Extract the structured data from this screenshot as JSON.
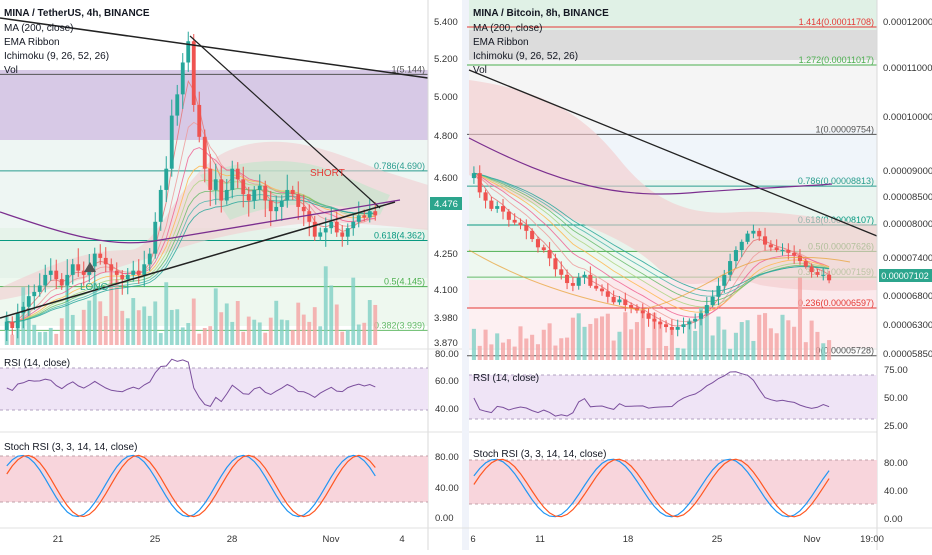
{
  "chart_data": [
    {
      "type": "candlestick",
      "panel": "left",
      "title": "MINA / TetherUS, 4h, BINANCE",
      "indicators": [
        "MA (200, close)",
        "EMA Ribbon",
        "Ichimoku (9, 26, 52, 26)",
        "Vol"
      ],
      "y_ticks": [
        "5.400",
        "5.200",
        "5.000",
        "4.800",
        "4.600",
        "4.476",
        "4.250",
        "4.100",
        "3.980",
        "3.870"
      ],
      "last_price": "4.476",
      "fib_levels": [
        {
          "label": "1(5.144)",
          "value": 5.144,
          "color": "#555555"
        },
        {
          "label": "0.786(4.690)",
          "value": 4.69,
          "color": "#2a9d8f"
        },
        {
          "label": "0.618(4.362)",
          "value": 4.362,
          "color": "#089981"
        },
        {
          "label": "0.5(4.145)",
          "value": 4.145,
          "color": "#4caf50"
        },
        {
          "label": "0.382(3.939)",
          "value": 3.939,
          "color": "#66bb6a"
        }
      ],
      "annotations": [
        "SHORT",
        "LONG"
      ],
      "x_ticks": [
        "21",
        "25",
        "28",
        "Nov",
        "4"
      ],
      "rsi": {
        "title": "RSI (14, close)",
        "y_ticks": [
          "80.00",
          "60.00",
          "40.00"
        ]
      },
      "stoch_rsi": {
        "title": "Stoch RSI (3, 3, 14, 14, close)",
        "y_ticks": [
          "80.00",
          "40.00",
          "0.00"
        ]
      },
      "closes": [
        3.98,
        3.95,
        4.02,
        4.05,
        4.1,
        4.12,
        4.15,
        4.2,
        4.22,
        4.18,
        4.15,
        4.2,
        4.25,
        4.22,
        4.2,
        4.24,
        4.3,
        4.28,
        4.25,
        4.22,
        4.2,
        4.18,
        4.2,
        4.22,
        4.2,
        4.25,
        4.3,
        4.45,
        4.6,
        4.7,
        4.95,
        5.05,
        5.2,
        5.3,
        5.0,
        4.85,
        4.7,
        4.6,
        4.65,
        4.55,
        4.6,
        4.7,
        4.65,
        4.58,
        4.55,
        4.6,
        4.62,
        4.55,
        4.5,
        4.52,
        4.55,
        4.6,
        4.58,
        4.52,
        4.5,
        4.45,
        4.38,
        4.4,
        4.42,
        4.45,
        4.4,
        4.38,
        4.42,
        4.45,
        4.48,
        4.47,
        4.5,
        4.48
      ]
    },
    {
      "type": "candlestick",
      "panel": "right",
      "title": "MINA / Bitcoin, 8h, BINANCE",
      "indicators": [
        "MA (200, close)",
        "EMA Ribbon",
        "Ichimoku (9, 26, 52, 26)",
        "Vol"
      ],
      "y_ticks": [
        "0.00012000",
        "0.00011000",
        "0.00010000",
        "0.00009000",
        "0.00008500",
        "0.00008000",
        "0.00007400",
        "0.00007102",
        "0.00006800",
        "0.00006300",
        "0.00005850"
      ],
      "last_price": "0.00007102",
      "fib_levels": [
        {
          "label": "1.414(0.00011708)",
          "value": 0.00011708,
          "color": "#e53935"
        },
        {
          "label": "1.272(0.00011017)",
          "value": 0.00011017,
          "color": "#4caf50"
        },
        {
          "label": "1(0.00009754)",
          "value": 9.754e-05,
          "color": "#555555"
        },
        {
          "label": "0.786(0.00008813)",
          "value": 8.813e-05,
          "color": "#2a9d8f"
        },
        {
          "label": "0.618(0.00008107)",
          "value": 8.107e-05,
          "color": "#089981"
        },
        {
          "label": "0.5(0.00007626)",
          "value": 7.626e-05,
          "color": "#4caf50"
        },
        {
          "label": "0.382(0.00007159)",
          "value": 7.159e-05,
          "color": "#66bb6a"
        },
        {
          "label": "0.236(0.00006597)",
          "value": 6.597e-05,
          "color": "#e53935"
        },
        {
          "label": "0(0.00005728)",
          "value": 5.728e-05,
          "color": "#555555"
        }
      ],
      "x_ticks": [
        "6",
        "11",
        "18",
        "25",
        "Nov",
        "19:00"
      ],
      "rsi": {
        "title": "RSI (14, close)",
        "y_ticks": [
          "75.00",
          "50.00",
          "25.00"
        ]
      },
      "stoch_rsi": {
        "title": "Stoch RSI (3, 3, 14, 14, close)",
        "y_ticks": [
          "80.00",
          "40.00",
          "0.00"
        ]
      },
      "closes": [
        9.05e-05,
        8.7e-05,
        8.55e-05,
        8.4e-05,
        8.45e-05,
        8.35e-05,
        8.2e-05,
        8.15e-05,
        8.1e-05,
        8e-05,
        7.85e-05,
        7.7e-05,
        7.65e-05,
        7.5e-05,
        7.3e-05,
        7.2e-05,
        7.05e-05,
        7e-05,
        7.15e-05,
        7.2e-05,
        7e-05,
        6.95e-05,
        6.9e-05,
        6.8e-05,
        6.7e-05,
        6.75e-05,
        6.65e-05,
        6.6e-05,
        6.55e-05,
        6.5e-05,
        6.4e-05,
        6.35e-05,
        6.3e-05,
        6.25e-05,
        6.2e-05,
        6.25e-05,
        6.3e-05,
        6.35e-05,
        6.4e-05,
        6.5e-05,
        6.65e-05,
        6.8e-05,
        7e-05,
        7.2e-05,
        7.45e-05,
        7.65e-05,
        7.8e-05,
        7.95e-05,
        8e-05,
        7.9e-05,
        7.75e-05,
        7.7e-05,
        7.65e-05,
        7.65e-05,
        7.6e-05,
        7.55e-05,
        7.45e-05,
        7.35e-05,
        7.25e-05,
        7.2e-05,
        7.2e-05,
        7.1e-05
      ]
    }
  ]
}
